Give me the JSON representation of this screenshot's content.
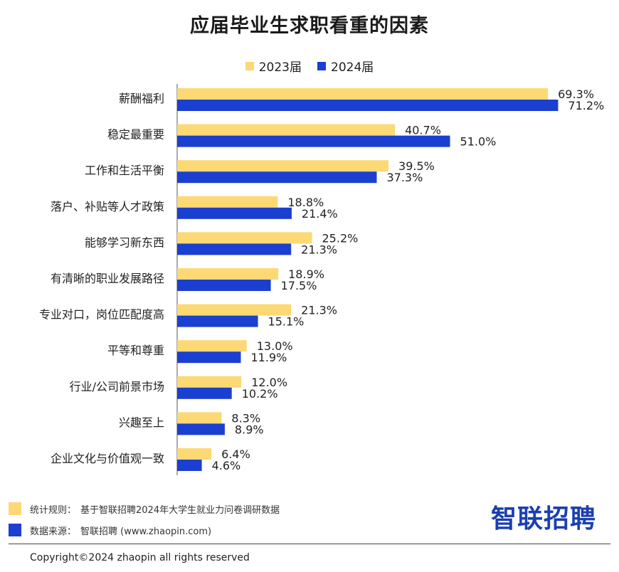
{
  "chart_data": {
    "type": "bar",
    "orientation": "horizontal",
    "title": "应届毕业生求职看重的因素",
    "legend_position": "top",
    "value_suffix": "%",
    "xlim": [
      0,
      75
    ],
    "grid": false,
    "categories": [
      "薪酬福利",
      "稳定最重要",
      "工作和生活平衡",
      "落户、补贴等人才政策",
      "能够学习新东西",
      "有清晰的职业发展路径",
      "专业对口，岗位匹配度高",
      "平等和尊重",
      "行业/公司前景市场",
      "兴趣至上",
      "企业文化与价值观一致"
    ],
    "series": [
      {
        "name": "2023届",
        "color": "#fcd974",
        "values": [
          69.3,
          40.7,
          39.5,
          18.8,
          25.2,
          18.9,
          21.3,
          13.0,
          12.0,
          8.3,
          6.4
        ],
        "labels": [
          "69.3%",
          "40.7%",
          "39.5%",
          "18.8%",
          "25.2%",
          "18.9%",
          "21.3%",
          "13.0%",
          "12.0%",
          "8.3%",
          "6.4%"
        ]
      },
      {
        "name": "2024届",
        "color": "#1b3fd0",
        "values": [
          71.2,
          51.0,
          37.3,
          21.4,
          21.3,
          17.5,
          15.1,
          11.9,
          10.2,
          8.9,
          4.6
        ],
        "labels": [
          "71.2%",
          "51.0%",
          "37.3%",
          "21.4%",
          "21.3%",
          "17.5%",
          "15.1%",
          "11.9%",
          "10.2%",
          "8.9%",
          "4.6%"
        ]
      }
    ]
  },
  "footnotes": {
    "rule_label": "统计规则：",
    "rule_text": "基于智联招聘2024年大学生就业力问卷调研数据",
    "source_label": "数据来源：",
    "source_text": "智联招聘 (www.zhaopin.com)"
  },
  "brand": "智联招聘",
  "copyright": "Copyright©2024 zhaopin all rights reserved"
}
